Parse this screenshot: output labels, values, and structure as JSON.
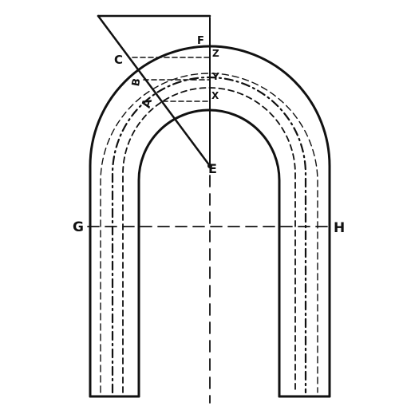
{
  "colors": {
    "ink": "#111111",
    "paper": "#ffffff"
  },
  "labels": {
    "a": "A",
    "b": "B",
    "c": "C",
    "e": "E",
    "f": "F",
    "g": "G",
    "h": "H",
    "x": "X",
    "y": "Y",
    "z": "Z"
  }
}
